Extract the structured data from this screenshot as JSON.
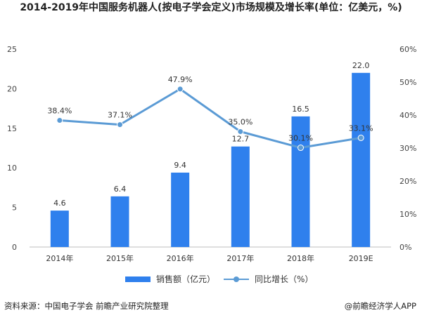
{
  "title": "2014-2019年中国服务机器人(按电子学会定义)市场规模及增长率(单位：亿美元，%)",
  "chart_data": {
    "type": "bar",
    "categories": [
      "2014年",
      "2015年",
      "2016年",
      "2017年",
      "2018年",
      "2019E"
    ],
    "series": [
      {
        "name": "销售额（亿元）",
        "type": "bar",
        "axis": "left",
        "color": "#2f80ed",
        "values": [
          4.6,
          6.4,
          9.4,
          12.7,
          16.5,
          22.0
        ],
        "labels": [
          "4.6",
          "6.4",
          "9.4",
          "12.7",
          "16.5",
          "22.0"
        ]
      },
      {
        "name": "同比增长（%）",
        "type": "line",
        "axis": "right",
        "color": "#5b9bd5",
        "values": [
          38.4,
          37.1,
          47.9,
          35.0,
          30.1,
          33.1
        ],
        "labels": [
          "38.4%",
          "37.1%",
          "47.9%",
          "35.0%",
          "30.1%",
          "33.1%"
        ]
      }
    ],
    "y_left": {
      "min": 0,
      "max": 25,
      "ticks": [
        "0",
        "5",
        "10",
        "15",
        "20",
        "25"
      ]
    },
    "y_right": {
      "min": 0,
      "max": 60,
      "ticks": [
        "0%",
        "10%",
        "20%",
        "30%",
        "40%",
        "50%",
        "60%"
      ]
    },
    "grid": false,
    "legend_position": "bottom"
  },
  "footer": {
    "source": "资料来源：中国电子学会 前瞻产业研究院整理",
    "brand": "@前瞻经济学人APP"
  }
}
